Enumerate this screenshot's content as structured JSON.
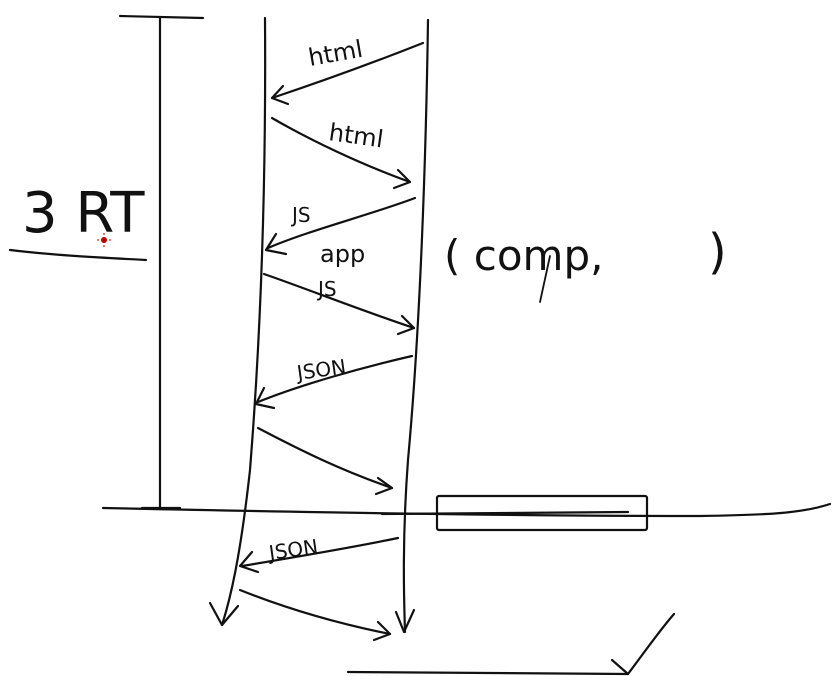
{
  "labels": {
    "rtt": "3 RT",
    "html_response": "html",
    "html_request": "html",
    "js_response": "JS",
    "app": "app",
    "js_request": "JS",
    "json_response": "JSON",
    "json_response_2": "JSON",
    "comp": "( comp,",
    "comp_close": ")"
  },
  "colors": {
    "ink": "#111111",
    "cursor": "#c00000"
  }
}
